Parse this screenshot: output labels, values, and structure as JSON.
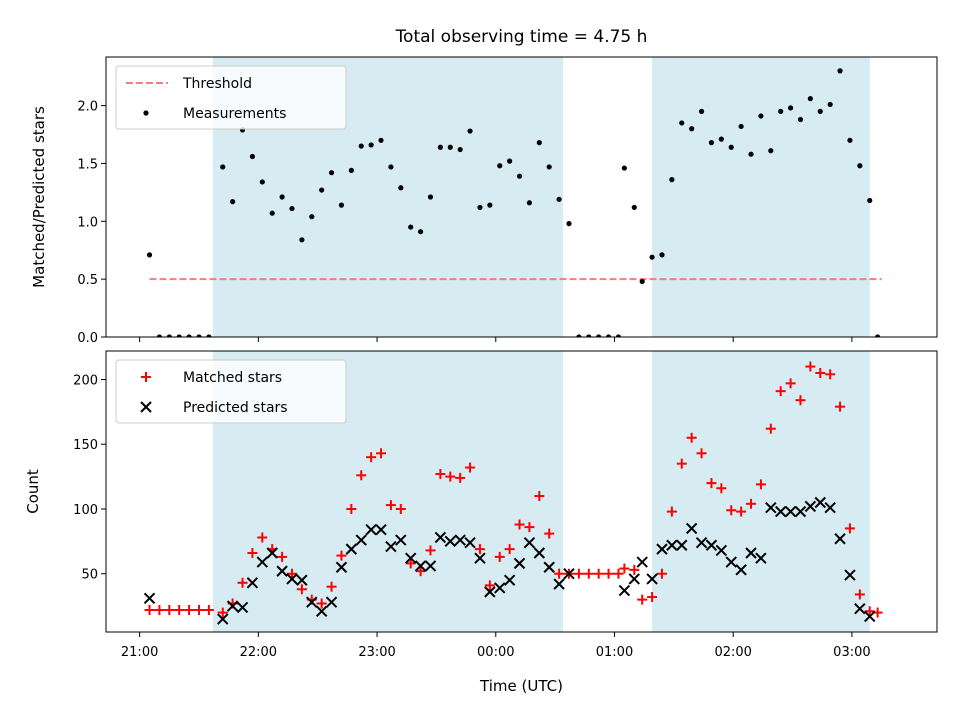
{
  "chart_data": [
    {
      "type": "scatter",
      "title": "Total observing time = 4.75 h",
      "xlabel": "",
      "ylabel": "Matched/Predicted stars",
      "xlim": [
        "20:43",
        "03:43"
      ],
      "ylim": [
        0,
        2.42
      ],
      "yticks": [
        "0.0",
        "0.5",
        "1.0",
        "1.5",
        "2.0"
      ],
      "legend": {
        "position": "top-left",
        "entries": [
          "Threshold",
          "Measurements"
        ]
      },
      "shaded_intervals": [
        [
          "21:37",
          "00:34"
        ],
        [
          "01:19",
          "03:09"
        ]
      ],
      "threshold": {
        "name": "Threshold",
        "y": 0.5,
        "x_start": "21:05",
        "x_end": "03:15",
        "color": "#f07f7f"
      },
      "series": [
        {
          "name": "Measurements",
          "color": "#000000",
          "points": [
            [
              "21:05",
              0.71
            ],
            [
              "21:10",
              0.0
            ],
            [
              "21:15",
              0.0
            ],
            [
              "21:20",
              0.0
            ],
            [
              "21:25",
              0.0
            ],
            [
              "21:30",
              0.0
            ],
            [
              "21:35",
              0.0
            ],
            [
              "21:42",
              1.47
            ],
            [
              "21:47",
              1.17
            ],
            [
              "21:52",
              1.79
            ],
            [
              "21:57",
              1.56
            ],
            [
              "22:02",
              1.34
            ],
            [
              "22:07",
              1.07
            ],
            [
              "22:12",
              1.21
            ],
            [
              "22:17",
              1.11
            ],
            [
              "22:22",
              0.84
            ],
            [
              "22:27",
              1.04
            ],
            [
              "22:32",
              1.27
            ],
            [
              "22:37",
              1.42
            ],
            [
              "22:42",
              1.14
            ],
            [
              "22:47",
              1.44
            ],
            [
              "22:52",
              1.65
            ],
            [
              "22:57",
              1.66
            ],
            [
              "23:02",
              1.7
            ],
            [
              "23:07",
              1.47
            ],
            [
              "23:12",
              1.29
            ],
            [
              "23:17",
              0.95
            ],
            [
              "23:22",
              0.91
            ],
            [
              "23:27",
              1.21
            ],
            [
              "23:32",
              1.64
            ],
            [
              "23:37",
              1.64
            ],
            [
              "23:42",
              1.62
            ],
            [
              "23:47",
              1.78
            ],
            [
              "23:52",
              1.12
            ],
            [
              "23:57",
              1.14
            ],
            [
              "00:02",
              1.48
            ],
            [
              "00:07",
              1.52
            ],
            [
              "00:12",
              1.39
            ],
            [
              "00:17",
              1.16
            ],
            [
              "00:22",
              1.68
            ],
            [
              "00:27",
              1.47
            ],
            [
              "00:32",
              1.19
            ],
            [
              "00:37",
              0.98
            ],
            [
              "00:42",
              0.0
            ],
            [
              "00:47",
              0.0
            ],
            [
              "00:52",
              0.0
            ],
            [
              "00:57",
              0.0
            ],
            [
              "01:02",
              0.0
            ],
            [
              "01:05",
              1.46
            ],
            [
              "01:10",
              1.12
            ],
            [
              "01:14",
              0.48
            ],
            [
              "01:19",
              0.69
            ],
            [
              "01:24",
              0.71
            ],
            [
              "01:29",
              1.36
            ],
            [
              "01:34",
              1.85
            ],
            [
              "01:39",
              1.8
            ],
            [
              "01:44",
              1.95
            ],
            [
              "01:49",
              1.68
            ],
            [
              "01:54",
              1.71
            ],
            [
              "01:59",
              1.64
            ],
            [
              "02:04",
              1.82
            ],
            [
              "02:09",
              1.58
            ],
            [
              "02:14",
              1.91
            ],
            [
              "02:19",
              1.61
            ],
            [
              "02:24",
              1.95
            ],
            [
              "02:29",
              1.98
            ],
            [
              "02:34",
              1.88
            ],
            [
              "02:39",
              2.06
            ],
            [
              "02:44",
              1.95
            ],
            [
              "02:49",
              2.01
            ],
            [
              "02:54",
              2.3
            ],
            [
              "02:59",
              1.7
            ],
            [
              "03:04",
              1.48
            ],
            [
              "03:09",
              1.18
            ],
            [
              "03:13",
              0.0
            ]
          ]
        }
      ]
    },
    {
      "type": "scatter",
      "title": "",
      "xlabel": "Time (UTC)",
      "ylabel": "Count",
      "xlim": [
        "20:43",
        "03:43"
      ],
      "ylim": [
        5,
        222
      ],
      "yticks": [
        "50",
        "100",
        "150",
        "200"
      ],
      "xticks": [
        "21:00",
        "22:00",
        "23:00",
        "00:00",
        "01:00",
        "02:00",
        "03:00"
      ],
      "legend": {
        "position": "top-left",
        "entries": [
          "Matched stars",
          "Predicted stars"
        ]
      },
      "shaded_intervals": [
        [
          "21:37",
          "00:34"
        ],
        [
          "01:19",
          "03:09"
        ]
      ],
      "series": [
        {
          "name": "Matched stars",
          "marker": "+",
          "color": "#ff0000",
          "points": [
            [
              "21:05",
              22
            ],
            [
              "21:10",
              22
            ],
            [
              "21:15",
              22
            ],
            [
              "21:20",
              22
            ],
            [
              "21:25",
              22
            ],
            [
              "21:30",
              22
            ],
            [
              "21:35",
              22
            ],
            [
              "21:42",
              20
            ],
            [
              "21:47",
              27
            ],
            [
              "21:52",
              43
            ],
            [
              "21:57",
              66
            ],
            [
              "22:02",
              78
            ],
            [
              "22:07",
              69
            ],
            [
              "22:12",
              63
            ],
            [
              "22:17",
              50
            ],
            [
              "22:22",
              38
            ],
            [
              "22:27",
              30
            ],
            [
              "22:32",
              27
            ],
            [
              "22:37",
              40
            ],
            [
              "22:42",
              64
            ],
            [
              "22:47",
              100
            ],
            [
              "22:52",
              126
            ],
            [
              "22:57",
              140
            ],
            [
              "23:02",
              143
            ],
            [
              "23:07",
              103
            ],
            [
              "23:12",
              100
            ],
            [
              "23:17",
              58
            ],
            [
              "23:22",
              52
            ],
            [
              "23:27",
              68
            ],
            [
              "23:32",
              127
            ],
            [
              "23:37",
              125
            ],
            [
              "23:42",
              124
            ],
            [
              "23:47",
              132
            ],
            [
              "23:52",
              69
            ],
            [
              "23:57",
              41
            ],
            [
              "00:02",
              63
            ],
            [
              "00:07",
              69
            ],
            [
              "00:12",
              88
            ],
            [
              "00:17",
              86
            ],
            [
              "00:22",
              110
            ],
            [
              "00:27",
              81
            ],
            [
              "00:32",
              50
            ],
            [
              "00:37",
              50
            ],
            [
              "00:42",
              50
            ],
            [
              "00:47",
              50
            ],
            [
              "00:52",
              50
            ],
            [
              "00:57",
              50
            ],
            [
              "01:02",
              50
            ],
            [
              "01:05",
              54
            ],
            [
              "01:10",
              53
            ],
            [
              "01:14",
              30
            ],
            [
              "01:19",
              32
            ],
            [
              "01:24",
              50
            ],
            [
              "01:29",
              98
            ],
            [
              "01:34",
              135
            ],
            [
              "01:39",
              155
            ],
            [
              "01:44",
              143
            ],
            [
              "01:49",
              120
            ],
            [
              "01:54",
              116
            ],
            [
              "01:59",
              99
            ],
            [
              "02:04",
              98
            ],
            [
              "02:09",
              104
            ],
            [
              "02:14",
              119
            ],
            [
              "02:19",
              162
            ],
            [
              "02:24",
              191
            ],
            [
              "02:29",
              197
            ],
            [
              "02:34",
              184
            ],
            [
              "02:39",
              210
            ],
            [
              "02:44",
              205
            ],
            [
              "02:49",
              204
            ],
            [
              "02:54",
              179
            ],
            [
              "02:59",
              85
            ],
            [
              "03:04",
              34
            ],
            [
              "03:09",
              21
            ],
            [
              "03:13",
              20
            ]
          ]
        },
        {
          "name": "Predicted stars",
          "marker": "x",
          "color": "#000000",
          "points": [
            [
              "21:05",
              31
            ],
            [
              "21:42",
              15
            ],
            [
              "21:47",
              25
            ],
            [
              "21:52",
              24
            ],
            [
              "21:57",
              43
            ],
            [
              "22:02",
              59
            ],
            [
              "22:07",
              66
            ],
            [
              "22:12",
              52
            ],
            [
              "22:17",
              46
            ],
            [
              "22:22",
              45
            ],
            [
              "22:27",
              28
            ],
            [
              "22:32",
              21
            ],
            [
              "22:37",
              28
            ],
            [
              "22:42",
              55
            ],
            [
              "22:47",
              69
            ],
            [
              "22:52",
              76
            ],
            [
              "22:57",
              84
            ],
            [
              "23:02",
              84
            ],
            [
              "23:07",
              71
            ],
            [
              "23:12",
              76
            ],
            [
              "23:17",
              62
            ],
            [
              "23:22",
              56
            ],
            [
              "23:27",
              56
            ],
            [
              "23:32",
              78
            ],
            [
              "23:37",
              75
            ],
            [
              "23:42",
              76
            ],
            [
              "23:47",
              74
            ],
            [
              "23:52",
              62
            ],
            [
              "23:57",
              36
            ],
            [
              "00:02",
              39
            ],
            [
              "00:07",
              45
            ],
            [
              "00:12",
              58
            ],
            [
              "00:17",
              74
            ],
            [
              "00:22",
              66
            ],
            [
              "00:27",
              55
            ],
            [
              "00:32",
              42
            ],
            [
              "00:37",
              50
            ],
            [
              "01:05",
              37
            ],
            [
              "01:10",
              46
            ],
            [
              "01:14",
              59
            ],
            [
              "01:19",
              46
            ],
            [
              "01:24",
              69
            ],
            [
              "01:29",
              72
            ],
            [
              "01:34",
              72
            ],
            [
              "01:39",
              85
            ],
            [
              "01:44",
              74
            ],
            [
              "01:49",
              72
            ],
            [
              "01:54",
              68
            ],
            [
              "01:59",
              59
            ],
            [
              "02:04",
              53
            ],
            [
              "02:09",
              66
            ],
            [
              "02:14",
              62
            ],
            [
              "02:19",
              101
            ],
            [
              "02:24",
              98
            ],
            [
              "02:29",
              98
            ],
            [
              "02:34",
              98
            ],
            [
              "02:39",
              102
            ],
            [
              "02:44",
              105
            ],
            [
              "02:49",
              101
            ],
            [
              "02:54",
              77
            ],
            [
              "02:59",
              49
            ],
            [
              "03:04",
              23
            ],
            [
              "03:09",
              17
            ]
          ]
        }
      ]
    }
  ]
}
